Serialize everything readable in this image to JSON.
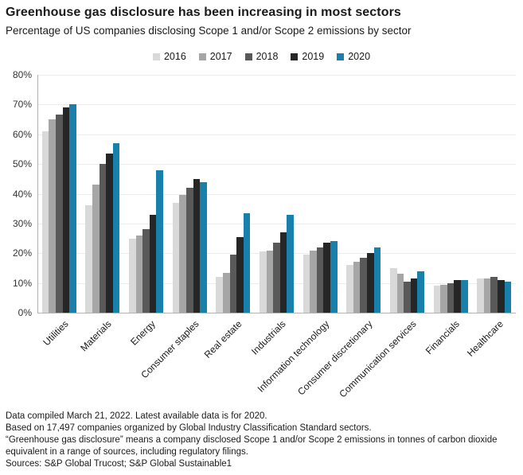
{
  "header": {
    "title": "Greenhouse gas disclosure has been increasing in most sectors",
    "subtitle": "Percentage of US companies disclosing Scope 1 and/or Scope 2 emissions by sector"
  },
  "legend": {
    "items": [
      {
        "label": "2016",
        "color": "#d9d9d9"
      },
      {
        "label": "2017",
        "color": "#a6a6a6"
      },
      {
        "label": "2018",
        "color": "#595959"
      },
      {
        "label": "2019",
        "color": "#262626"
      },
      {
        "label": "2020",
        "color": "#1781ab"
      }
    ]
  },
  "chart_data": {
    "type": "bar",
    "title": "Greenhouse gas disclosure has been increasing in most sectors",
    "subtitle": "Percentage of US companies disclosing Scope 1 and/or Scope 2 emissions by sector",
    "categories": [
      "Utilities",
      "Materials",
      "Energy",
      "Consumer staples",
      "Real estate",
      "Industrials",
      "Information technology",
      "Consumer discretionary",
      "Communication services",
      "Financials",
      "Healthcare"
    ],
    "series": [
      {
        "name": "2016",
        "color": "#d9d9d9",
        "values": [
          61,
          36,
          25,
          37,
          12,
          20.5,
          19.5,
          16,
          15,
          9,
          11.5
        ]
      },
      {
        "name": "2017",
        "color": "#a6a6a6",
        "values": [
          65,
          43,
          26,
          39.5,
          13.5,
          21,
          21,
          17,
          13,
          9.5,
          11.5
        ]
      },
      {
        "name": "2018",
        "color": "#595959",
        "values": [
          66.5,
          50,
          28,
          42,
          19.5,
          23.5,
          22,
          18.5,
          10.5,
          10,
          12
        ]
      },
      {
        "name": "2019",
        "color": "#262626",
        "values": [
          69,
          53.5,
          33,
          45,
          25.5,
          27,
          23.5,
          20,
          11.5,
          11,
          11
        ]
      },
      {
        "name": "2020",
        "color": "#1781ab",
        "values": [
          70,
          57,
          48,
          44,
          33.5,
          33,
          24,
          22,
          14,
          11,
          10.5
        ]
      }
    ],
    "xlabel": "",
    "ylabel": "",
    "ylim": [
      0,
      80
    ],
    "ytick_labels": [
      "0%",
      "10%",
      "20%",
      "30%",
      "40%",
      "50%",
      "60%",
      "70%",
      "80%"
    ],
    "grid": true,
    "legend_position": "top-center"
  },
  "footnotes": {
    "lines": [
      "Data compiled March 21, 2022. Latest available data is for 2020.",
      "Based on 17,497 companies organized by Global Industry Classification Standard sectors.",
      "“Greenhouse gas disclosure” means a company disclosed Scope 1 and/or Scope 2 emissions in tonnes of carbon dioxide equivalent in a range of sources, including regulatory filings.",
      "Sources: S&P Global Trucost; S&P Global Sustainable1"
    ]
  }
}
